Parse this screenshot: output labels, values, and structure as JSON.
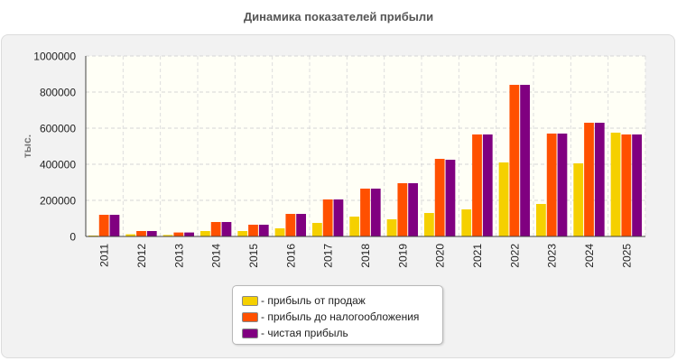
{
  "chart_data": {
    "type": "bar",
    "title": "Динамика показателей прибыли",
    "ylabel": "тыс.",
    "xlabel": "",
    "ylim": [
      0,
      1000000
    ],
    "yticks": [
      0,
      200000,
      400000,
      600000,
      800000,
      1000000
    ],
    "grid": true,
    "legend_position": "bottom",
    "categories": [
      "2011",
      "2012",
      "2013",
      "2014",
      "2015",
      "2016",
      "2017",
      "2018",
      "2019",
      "2020",
      "2021",
      "2022",
      "2023",
      "2024",
      "2025"
    ],
    "series": [
      {
        "name": "- прибыль от продаж",
        "color": "#f5d000",
        "values": [
          5000,
          12000,
          8000,
          30000,
          30000,
          45000,
          75000,
          110000,
          95000,
          130000,
          150000,
          410000,
          180000,
          405000,
          575000
        ]
      },
      {
        "name": "- прибыль до налогообложения",
        "color": "#ff5000",
        "values": [
          120000,
          30000,
          22000,
          80000,
          65000,
          125000,
          205000,
          265000,
          295000,
          430000,
          565000,
          840000,
          570000,
          630000,
          565000
        ]
      },
      {
        "name": "- чистая прибыль",
        "color": "#800080",
        "values": [
          120000,
          30000,
          22000,
          80000,
          65000,
          125000,
          205000,
          265000,
          295000,
          425000,
          565000,
          840000,
          570000,
          630000,
          565000
        ]
      }
    ]
  }
}
